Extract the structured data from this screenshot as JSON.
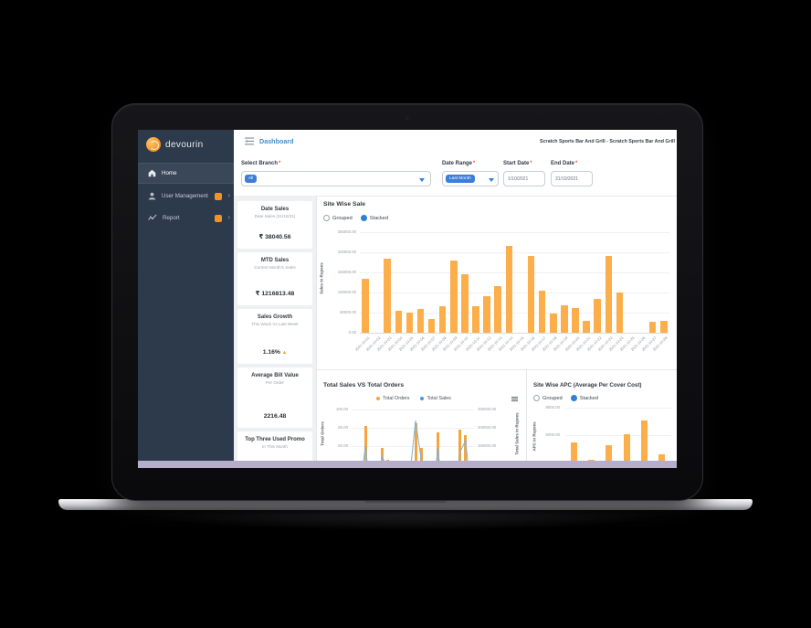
{
  "sidebar": {
    "logo_text": "devourin",
    "items": [
      {
        "label": "Home",
        "icon": "home-icon",
        "active": true
      },
      {
        "label": "User Management",
        "icon": "user-icon",
        "badge": true,
        "chevron": "›"
      },
      {
        "label": "Report",
        "icon": "report-icon",
        "badge": true,
        "chevron": "›"
      }
    ]
  },
  "topbar": {
    "title": "Dashboard",
    "restaurant": "Scratch Sports Bar And Grill - Scratch Sports Bar And Grill"
  },
  "filters": {
    "select_branch": {
      "label": "Select Branch",
      "required": "*",
      "value": "All"
    },
    "date_range": {
      "label": "Date Range",
      "required": "*",
      "value": "Last Month"
    },
    "start_date": {
      "label": "Start Date",
      "required": "*",
      "value": "1/10/2021"
    },
    "end_date": {
      "label": "End Date",
      "required": "*",
      "value": "31/10/2021"
    }
  },
  "stats": [
    {
      "title": "Date Sales",
      "subtitle": "Date Sales (31/10/21)",
      "value": "₹ 38040.56"
    },
    {
      "title": "MTD Sales",
      "subtitle": "Current Month's Sales",
      "value": "₹ 1216813.48"
    },
    {
      "title": "Sales Growth",
      "subtitle": "This Week Vs Last Week",
      "value": "1.16%",
      "trend_glyph": "▲"
    },
    {
      "title": "Average Bill Value",
      "subtitle": "Per Order",
      "value": "2216.48"
    },
    {
      "title": "Top Three Used Promo",
      "subtitle": "In This Month"
    }
  ],
  "colors": {
    "accent_orange": "#f0932b",
    "bar_orange": "#fbab45",
    "line_blue": "#74b3e3",
    "accent_blue": "#3b7dd8",
    "sidebar_bg": "#2d3a4b",
    "scrollbar": "#b5aecb",
    "required_red": "#e2574c"
  },
  "chart_data": [
    {
      "name": "site_wise_sale",
      "type": "bar",
      "title": "Site Wise Sale",
      "controls": {
        "options": [
          "Grouped",
          "Stacked"
        ],
        "selected": "Stacked"
      },
      "ylabel": "Sales In Rupees",
      "ylim": [
        0,
        250000
      ],
      "grid": true,
      "yticks": [
        "250000.00",
        "200000.00",
        "150000.00",
        "100000.00",
        "50000.00",
        "0.00"
      ],
      "categories": [
        "2021-10-01",
        "2021-10-02",
        "2021-10-03",
        "2021-10-04",
        "2021-10-05",
        "2021-10-06",
        "2021-10-07",
        "2021-10-08",
        "2021-10-09",
        "2021-10-10",
        "2021-10-11",
        "2021-10-12",
        "2021-10-13",
        "2021-10-14",
        "2021-10-15",
        "2021-10-16",
        "2021-10-17",
        "2021-10-18",
        "2021-10-19",
        "2021-10-20",
        "2021-10-21",
        "2021-10-22",
        "2021-10-23",
        "2021-10-24",
        "2021-10-25",
        "2021-10-26",
        "2021-10-27",
        "2021-10-28"
      ],
      "values": [
        135000,
        0,
        185000,
        55000,
        50000,
        60000,
        35000,
        65000,
        180000,
        145000,
        67000,
        92000,
        115000,
        215000,
        0,
        190000,
        105000,
        48000,
        68000,
        62000,
        30000,
        85000,
        190000,
        100000,
        0,
        0,
        28000,
        30000
      ]
    },
    {
      "name": "total_sales_vs_total_orders",
      "type": "combo-bar-line",
      "title": "Total Sales VS Total Orders",
      "legend": [
        "Total Orders",
        "Total Sales"
      ],
      "legend_position": "top",
      "ylabel_left": "Total Orders",
      "ylabel_right": "Total Sales In Rupees",
      "ylim_left": [
        0,
        100
      ],
      "ylim_right": [
        0,
        250000
      ],
      "yticks_left": [
        "100.00",
        "80.00",
        "60.00"
      ],
      "yticks_right": [
        "250000.00",
        "200000.00",
        "150000.00"
      ],
      "series": [
        {
          "name": "Total Orders",
          "type": "bar",
          "color": "#f5a53f",
          "values": [
            2,
            22,
            82,
            0,
            0,
            58,
            45,
            3,
            0,
            38,
            40,
            85,
            58,
            10,
            0,
            75,
            2,
            0,
            0,
            78,
            72,
            3
          ]
        },
        {
          "name": "Total Sales",
          "type": "line",
          "color": "#74b3e3",
          "values": [
            5000,
            35000,
            150000,
            0,
            0,
            120000,
            90000,
            8000,
            0,
            65000,
            75000,
            220000,
            115000,
            25000,
            0,
            145000,
            5000,
            0,
            0,
            135000,
            165000,
            10000
          ]
        }
      ]
    },
    {
      "name": "site_wise_apc",
      "type": "bar",
      "title": "Site Wise APC (Average Per Cover Cost)",
      "controls": {
        "options": [
          "Grouped",
          "Stacked"
        ],
        "selected": "Stacked"
      },
      "ylabel": "APC In Rupees",
      "ylim": [
        0,
        8000
      ],
      "yticks": [
        "8000.00",
        "6000.00",
        "4000.00"
      ],
      "categories": [],
      "values": [
        5500,
        4200,
        5300,
        6100,
        7100,
        4600
      ]
    }
  ]
}
